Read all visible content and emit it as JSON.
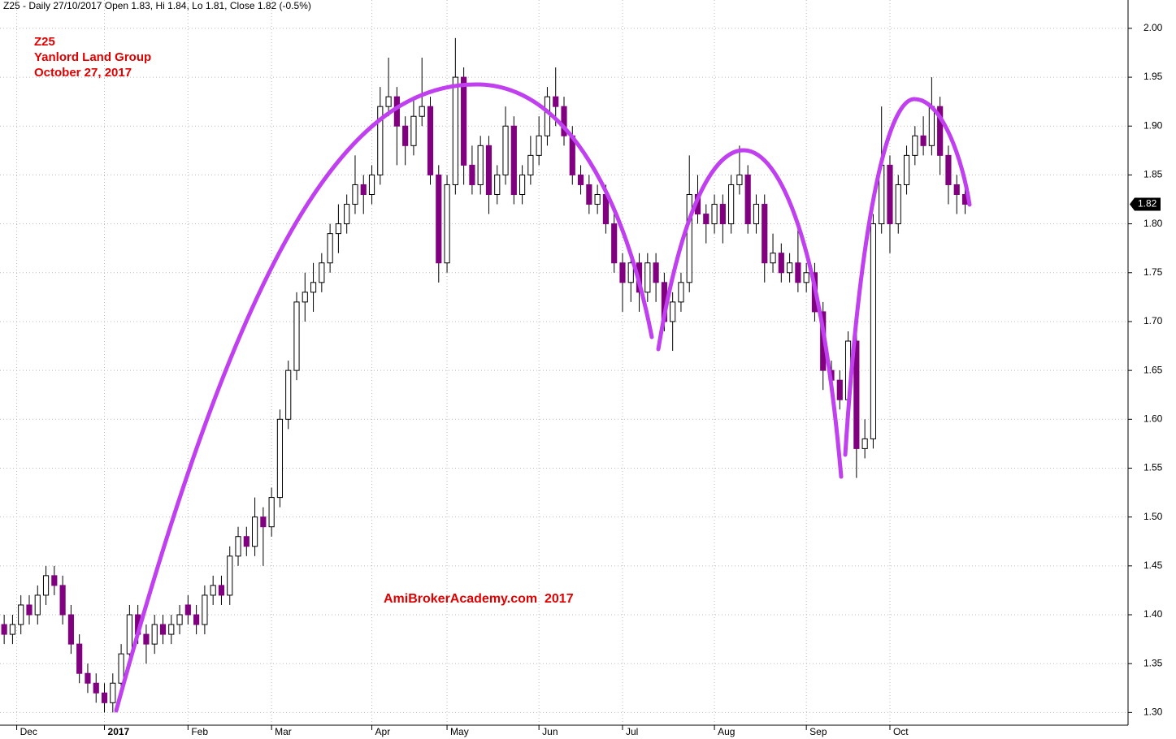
{
  "chart_data": {
    "type": "candlestick",
    "header": "Z25 - Daily 27/10/2017 Open 1.83, Hi 1.84, Lo 1.81, Close 1.82 (-0.5%)",
    "title": [
      "Z25",
      "Yanlord Land Group",
      "October 27, 2017"
    ],
    "watermark": "AmiBrokerAcademy.com  2017",
    "up_color": "#ffffff",
    "down_color": "#800080",
    "grid": true,
    "open": [
      1.39,
      1.38,
      1.39,
      1.41,
      1.4,
      1.42,
      1.44,
      1.43,
      1.4,
      1.37,
      1.34,
      1.33,
      1.32,
      1.31,
      1.33,
      1.36,
      1.4,
      1.38,
      1.37,
      1.39,
      1.38,
      1.39,
      1.41,
      1.4,
      1.39,
      1.42,
      1.43,
      1.42,
      1.46,
      1.48,
      1.47,
      1.5,
      1.49,
      1.52,
      1.6,
      1.65,
      1.72,
      1.73,
      1.74,
      1.76,
      1.79,
      1.8,
      1.82,
      1.84,
      1.83,
      1.85,
      1.92,
      1.93,
      1.9,
      1.88,
      1.91,
      1.92,
      1.85,
      1.76,
      1.84,
      1.95,
      1.86,
      1.84,
      1.88,
      1.83,
      1.85,
      1.9,
      1.83,
      1.85,
      1.87,
      1.89,
      1.93,
      1.92,
      1.89,
      1.85,
      1.84,
      1.82,
      1.83,
      1.8,
      1.76,
      1.74,
      1.76,
      1.73,
      1.76,
      1.74,
      1.7,
      1.72,
      1.74,
      1.83,
      1.81,
      1.8,
      1.82,
      1.8,
      1.84,
      1.85,
      1.8,
      1.82,
      1.76,
      1.77,
      1.75,
      1.76,
      1.74,
      1.75,
      1.71,
      1.65,
      1.64,
      1.62,
      1.68,
      1.57,
      1.58,
      1.8,
      1.86,
      1.8,
      1.84,
      1.87,
      1.89,
      1.88,
      1.92,
      1.87,
      1.84,
      1.83
    ],
    "high": [
      1.4,
      1.4,
      1.42,
      1.42,
      1.43,
      1.45,
      1.45,
      1.44,
      1.41,
      1.38,
      1.35,
      1.34,
      1.33,
      1.34,
      1.37,
      1.41,
      1.41,
      1.39,
      1.4,
      1.4,
      1.4,
      1.41,
      1.42,
      1.41,
      1.43,
      1.44,
      1.44,
      1.47,
      1.49,
      1.49,
      1.52,
      1.51,
      1.53,
      1.61,
      1.66,
      1.73,
      1.75,
      1.76,
      1.77,
      1.8,
      1.82,
      1.83,
      1.87,
      1.85,
      1.86,
      1.94,
      1.97,
      1.94,
      1.91,
      1.93,
      1.97,
      1.93,
      1.86,
      1.85,
      1.99,
      1.96,
      1.88,
      1.89,
      1.89,
      1.86,
      1.92,
      1.91,
      1.86,
      1.89,
      1.91,
      1.94,
      1.96,
      1.93,
      1.9,
      1.86,
      1.85,
      1.84,
      1.84,
      1.81,
      1.77,
      1.77,
      1.77,
      1.77,
      1.77,
      1.75,
      1.73,
      1.75,
      1.87,
      1.85,
      1.82,
      1.83,
      1.83,
      1.85,
      1.88,
      1.86,
      1.83,
      1.83,
      1.79,
      1.78,
      1.77,
      1.8,
      1.76,
      1.76,
      1.72,
      1.66,
      1.65,
      1.69,
      1.69,
      1.6,
      1.81,
      1.92,
      1.87,
      1.85,
      1.88,
      1.9,
      1.91,
      1.95,
      1.93,
      1.88,
      1.85,
      1.84
    ],
    "low": [
      1.37,
      1.37,
      1.38,
      1.39,
      1.39,
      1.41,
      1.42,
      1.39,
      1.36,
      1.33,
      1.32,
      1.31,
      1.3,
      1.3,
      1.32,
      1.35,
      1.37,
      1.35,
      1.36,
      1.37,
      1.37,
      1.38,
      1.39,
      1.38,
      1.38,
      1.41,
      1.41,
      1.41,
      1.45,
      1.46,
      1.46,
      1.45,
      1.48,
      1.51,
      1.59,
      1.64,
      1.7,
      1.71,
      1.73,
      1.75,
      1.77,
      1.79,
      1.81,
      1.81,
      1.82,
      1.84,
      1.91,
      1.86,
      1.86,
      1.87,
      1.9,
      1.84,
      1.74,
      1.75,
      1.83,
      1.84,
      1.83,
      1.83,
      1.81,
      1.82,
      1.84,
      1.82,
      1.82,
      1.84,
      1.86,
      1.88,
      1.9,
      1.88,
      1.84,
      1.83,
      1.81,
      1.81,
      1.79,
      1.75,
      1.71,
      1.72,
      1.71,
      1.72,
      1.72,
      1.69,
      1.67,
      1.71,
      1.73,
      1.8,
      1.78,
      1.79,
      1.78,
      1.79,
      1.83,
      1.79,
      1.79,
      1.74,
      1.75,
      1.74,
      1.74,
      1.73,
      1.73,
      1.7,
      1.63,
      1.63,
      1.61,
      1.61,
      1.54,
      1.56,
      1.57,
      1.79,
      1.77,
      1.79,
      1.83,
      1.86,
      1.87,
      1.87,
      1.85,
      1.82,
      1.81,
      1.81
    ],
    "close": [
      1.38,
      1.39,
      1.41,
      1.4,
      1.42,
      1.44,
      1.43,
      1.4,
      1.37,
      1.34,
      1.33,
      1.32,
      1.31,
      1.33,
      1.36,
      1.4,
      1.38,
      1.37,
      1.39,
      1.38,
      1.39,
      1.4,
      1.4,
      1.39,
      1.42,
      1.43,
      1.42,
      1.46,
      1.48,
      1.47,
      1.5,
      1.49,
      1.52,
      1.6,
      1.65,
      1.72,
      1.73,
      1.74,
      1.76,
      1.79,
      1.8,
      1.82,
      1.84,
      1.83,
      1.85,
      1.92,
      1.93,
      1.9,
      1.88,
      1.91,
      1.92,
      1.85,
      1.76,
      1.84,
      1.95,
      1.86,
      1.84,
      1.88,
      1.83,
      1.85,
      1.9,
      1.83,
      1.85,
      1.87,
      1.89,
      1.93,
      1.92,
      1.89,
      1.85,
      1.84,
      1.82,
      1.83,
      1.8,
      1.76,
      1.74,
      1.76,
      1.73,
      1.76,
      1.74,
      1.7,
      1.72,
      1.74,
      1.83,
      1.81,
      1.8,
      1.82,
      1.8,
      1.84,
      1.85,
      1.8,
      1.82,
      1.76,
      1.77,
      1.75,
      1.76,
      1.74,
      1.75,
      1.71,
      1.65,
      1.64,
      1.62,
      1.68,
      1.57,
      1.58,
      1.8,
      1.86,
      1.8,
      1.84,
      1.87,
      1.89,
      1.88,
      1.92,
      1.87,
      1.84,
      1.83,
      1.82
    ],
    "last_price": 1.82,
    "xlim": [
      -0.5,
      134.5
    ],
    "xticks": [
      {
        "value": 1.5,
        "label": "Dec"
      },
      {
        "value": 12,
        "label": "2017"
      },
      {
        "value": 22,
        "label": "Feb"
      },
      {
        "value": 32,
        "label": "Mar"
      },
      {
        "value": 44,
        "label": "Apr"
      },
      {
        "value": 53,
        "label": "May"
      },
      {
        "value": 64,
        "label": "Jun"
      },
      {
        "value": 74,
        "label": "Jul"
      },
      {
        "value": 85,
        "label": "Aug"
      },
      {
        "value": 96,
        "label": "Sep"
      },
      {
        "value": 106,
        "label": "Oct"
      }
    ],
    "ylim": [
      1.287,
      2.029
    ],
    "yticks": [
      {
        "value": 1.3,
        "label": "1.30"
      },
      {
        "value": 1.35,
        "label": "1.35"
      },
      {
        "value": 1.4,
        "label": "1.40"
      },
      {
        "value": 1.45,
        "label": "1.45"
      },
      {
        "value": 1.5,
        "label": "1.50"
      },
      {
        "value": 1.55,
        "label": "1.55"
      },
      {
        "value": 1.6,
        "label": "1.60"
      },
      {
        "value": 1.65,
        "label": "1.65"
      },
      {
        "value": 1.7,
        "label": "1.70"
      },
      {
        "value": 1.75,
        "label": "1.75"
      },
      {
        "value": 1.8,
        "label": "1.80"
      },
      {
        "value": 1.85,
        "label": "1.85"
      },
      {
        "value": 1.9,
        "label": "1.90"
      },
      {
        "value": 1.95,
        "label": "1.95"
      },
      {
        "value": 2.0,
        "label": "2.00"
      }
    ]
  }
}
